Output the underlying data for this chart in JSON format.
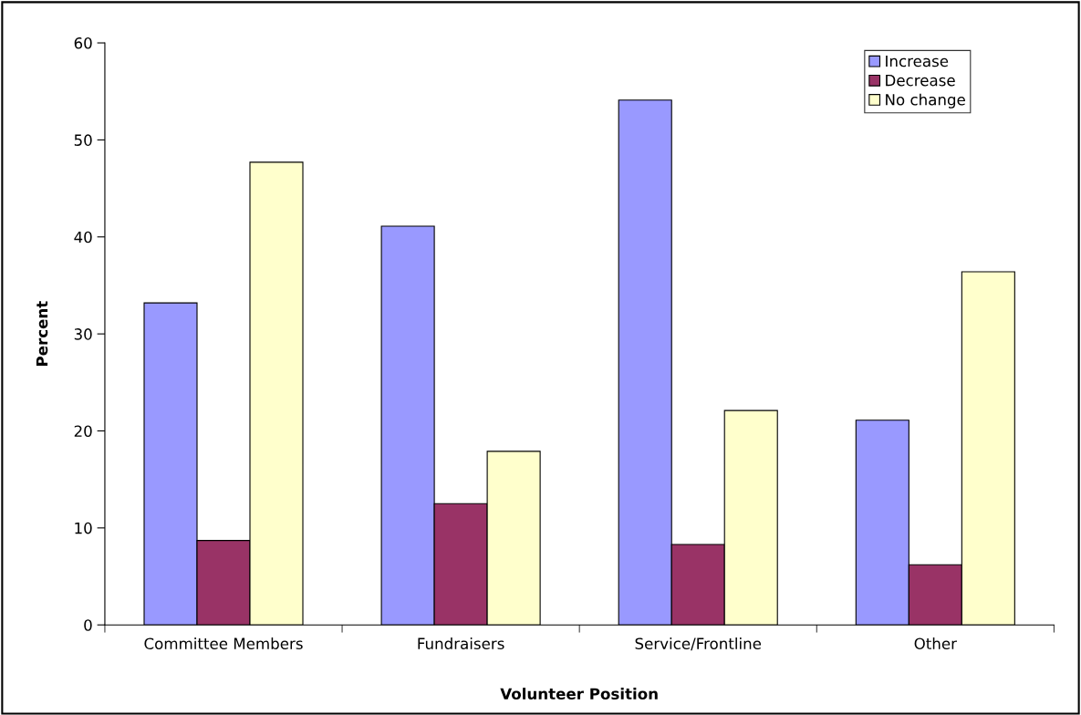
{
  "chart_data": {
    "type": "bar",
    "xlabel": "Volunteer Position",
    "ylabel": "Percent",
    "categories": [
      "Committee Members",
      "Fundraisers",
      "Service/Frontline",
      "Other"
    ],
    "series": [
      {
        "name": "Increase",
        "color": "#9999ff",
        "values": [
          33.2,
          41.1,
          54.1,
          21.1
        ]
      },
      {
        "name": "Decrease",
        "color": "#993366",
        "values": [
          8.7,
          12.5,
          8.3,
          6.2
        ]
      },
      {
        "name": "No change",
        "color": "#ffffcc",
        "values": [
          47.7,
          17.9,
          22.1,
          36.4
        ]
      }
    ],
    "ylim": [
      0,
      60
    ],
    "yticks": [
      0,
      10,
      20,
      30,
      40,
      50,
      60
    ],
    "grid": false,
    "legend": "top right"
  }
}
